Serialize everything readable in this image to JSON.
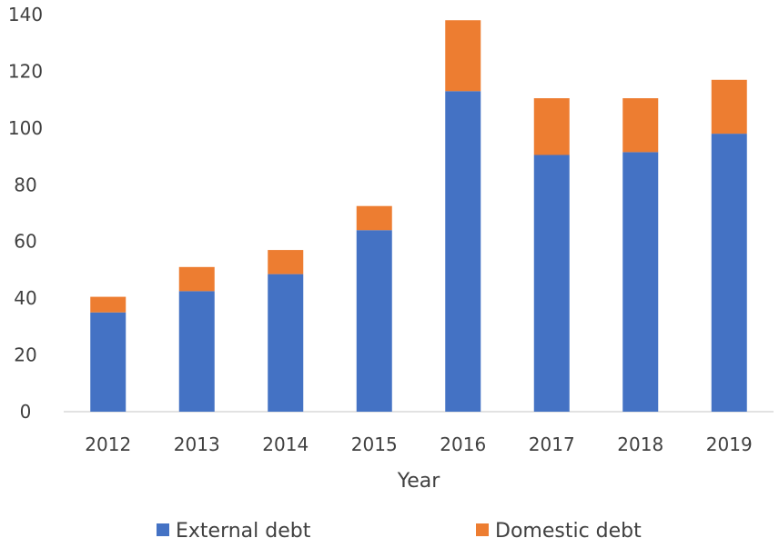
{
  "chart_data": {
    "type": "bar",
    "stacked": true,
    "categories": [
      "2012",
      "2013",
      "2014",
      "2015",
      "2016",
      "2017",
      "2018",
      "2019"
    ],
    "series": [
      {
        "name": "External debt",
        "color": "#4472C4",
        "values": [
          35,
          42.5,
          48.5,
          64,
          113,
          90.5,
          91.5,
          98
        ]
      },
      {
        "name": "Domestic debt",
        "color": "#ED7D31",
        "values": [
          5.5,
          8.5,
          8.5,
          8.5,
          25,
          20,
          19,
          19
        ]
      }
    ],
    "title": "",
    "xlabel": "Year",
    "ylabel": "",
    "ylim": [
      0,
      140
    ],
    "yticks": [
      "0",
      "20",
      "40",
      "60",
      "80",
      "100",
      "120",
      "140"
    ],
    "grid": false,
    "legend_position": "bottom"
  }
}
